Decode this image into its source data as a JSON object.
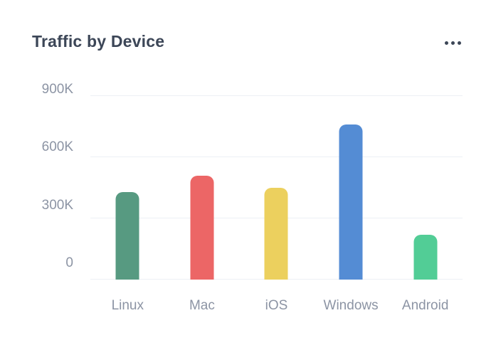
{
  "card": {
    "title": "Traffic by Device"
  },
  "colors": {
    "background": "#FFFFFF",
    "title_text": "#3C4657",
    "axis_label_text": "#8C94A4",
    "gridline": "#EDF0F5"
  },
  "chart_data": {
    "type": "bar",
    "title": "Traffic by Device",
    "categories": [
      "Linux",
      "Mac",
      "iOS",
      "Windows",
      "Android"
    ],
    "values": [
      430000,
      510000,
      450000,
      760000,
      220000
    ],
    "bar_colors": [
      "#579A81",
      "#EC6666",
      "#ECD05E",
      "#548CD4",
      "#52CD96"
    ],
    "xlabel": "",
    "ylabel": "",
    "ylim": [
      0,
      900000
    ],
    "yticks": [
      {
        "value": 0,
        "label": "0"
      },
      {
        "value": 300000,
        "label": "300K"
      },
      {
        "value": 600000,
        "label": "600K"
      },
      {
        "value": 900000,
        "label": "900K"
      }
    ],
    "grid": "horizontal",
    "legend": "none"
  }
}
